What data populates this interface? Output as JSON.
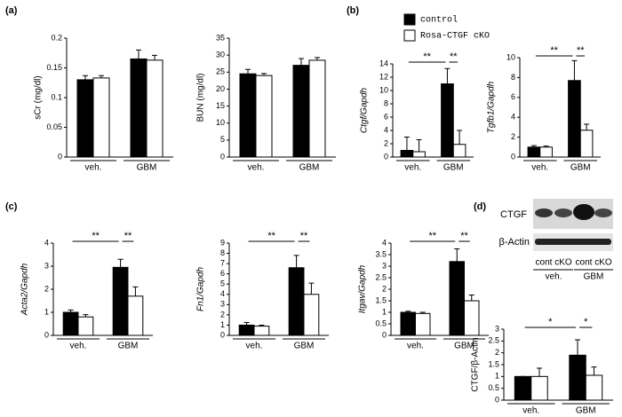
{
  "panels": [
    "(a)",
    "(b)",
    "(c)",
    "(d)"
  ],
  "blot": {
    "bands": [
      "CTGF",
      "β-Actin"
    ],
    "lanes": [
      "cont",
      "cKO",
      "cont",
      "cKO"
    ],
    "groups": [
      "veh.",
      "GBM"
    ]
  },
  "chart_data": [
    {
      "type": "bar",
      "ylabel": "sCr (mg/dl)",
      "categories": [
        "veh.",
        "GBM"
      ],
      "ylim": [
        0,
        0.2
      ],
      "yticks": [
        0,
        0.05,
        0.1,
        0.15,
        0.2
      ],
      "series": [
        {
          "name": "control",
          "color": "#000000",
          "values": [
            0.13,
            0.165
          ],
          "errors": [
            0.007,
            0.015
          ]
        },
        {
          "name": "Rosa-CTGF cKO",
          "color": "#ffffff",
          "values": [
            0.133,
            0.163
          ],
          "errors": [
            0.004,
            0.008
          ]
        }
      ]
    },
    {
      "type": "bar",
      "ylabel": "BUN (mg/dl)",
      "categories": [
        "veh.",
        "GBM"
      ],
      "ylim": [
        0,
        35
      ],
      "yticks": [
        0,
        5,
        10,
        15,
        20,
        25,
        30,
        35
      ],
      "series": [
        {
          "name": "control",
          "color": "#000000",
          "values": [
            24.5,
            27
          ],
          "errors": [
            1.3,
            2
          ]
        },
        {
          "name": "Rosa-CTGF cKO",
          "color": "#ffffff",
          "values": [
            24,
            28.5
          ],
          "errors": [
            0.6,
            0.8
          ]
        }
      ]
    },
    {
      "type": "bar",
      "ylabel": "Ctgf/Gapdh",
      "ylabel_italic": true,
      "categories": [
        "veh.",
        "GBM"
      ],
      "ylim": [
        0,
        14
      ],
      "yticks": [
        0,
        2,
        4,
        6,
        8,
        10,
        12,
        14
      ],
      "annotations": [
        "**",
        "**"
      ],
      "series": [
        {
          "name": "control",
          "color": "#000000",
          "values": [
            1,
            11
          ],
          "errors": [
            2,
            2.3
          ]
        },
        {
          "name": "Rosa-CTGF cKO",
          "color": "#ffffff",
          "values": [
            0.8,
            1.9
          ],
          "errors": [
            1.8,
            2.1
          ]
        }
      ]
    },
    {
      "type": "bar",
      "ylabel": "Tgfb1/Gapdh",
      "ylabel_italic": true,
      "categories": [
        "veh.",
        "GBM"
      ],
      "ylim": [
        0,
        10
      ],
      "yticks": [
        0,
        2,
        4,
        6,
        8,
        10
      ],
      "annotations": [
        "**",
        "**"
      ],
      "series": [
        {
          "name": "control",
          "color": "#000000",
          "values": [
            1,
            7.7
          ],
          "errors": [
            0.15,
            2
          ]
        },
        {
          "name": "Rosa-CTGF cKO",
          "color": "#ffffff",
          "values": [
            1,
            2.7
          ],
          "errors": [
            0.1,
            0.6
          ]
        }
      ]
    },
    {
      "type": "bar",
      "ylabel": "Acta2/Gapdh",
      "ylabel_italic": true,
      "categories": [
        "veh.",
        "GBM"
      ],
      "ylim": [
        0,
        4
      ],
      "yticks": [
        0,
        1,
        2,
        3,
        4
      ],
      "annotations": [
        "**",
        "**"
      ],
      "series": [
        {
          "name": "control",
          "color": "#000000",
          "values": [
            1,
            2.95
          ],
          "errors": [
            0.1,
            0.35
          ]
        },
        {
          "name": "Rosa-CTGF cKO",
          "color": "#ffffff",
          "values": [
            0.8,
            1.7
          ],
          "errors": [
            0.1,
            0.4
          ]
        }
      ]
    },
    {
      "type": "bar",
      "ylabel": "Fn1/Gapdh",
      "ylabel_italic": true,
      "categories": [
        "veh.",
        "GBM"
      ],
      "ylim": [
        0,
        9
      ],
      "yticks": [
        0,
        1,
        2,
        3,
        4,
        5,
        6,
        7,
        8,
        9
      ],
      "annotations": [
        "**",
        "**"
      ],
      "series": [
        {
          "name": "control",
          "color": "#000000",
          "values": [
            1,
            6.6
          ],
          "errors": [
            0.25,
            1.2
          ]
        },
        {
          "name": "Rosa-CTGF cKO",
          "color": "#ffffff",
          "values": [
            0.9,
            4
          ],
          "errors": [
            0.1,
            1.1
          ]
        }
      ]
    },
    {
      "type": "bar",
      "ylabel": "Itgav/Gapdh",
      "ylabel_italic": true,
      "categories": [
        "veh.",
        "GBM"
      ],
      "ylim": [
        0,
        4
      ],
      "yticks": [
        0,
        0.5,
        1,
        1.5,
        2,
        2.5,
        3,
        3.5,
        4
      ],
      "annotations": [
        "**",
        "**"
      ],
      "series": [
        {
          "name": "control",
          "color": "#000000",
          "values": [
            1,
            3.2
          ],
          "errors": [
            0.05,
            0.55
          ]
        },
        {
          "name": "Rosa-CTGF cKO",
          "color": "#ffffff",
          "values": [
            0.95,
            1.5
          ],
          "errors": [
            0.05,
            0.25
          ]
        }
      ]
    },
    {
      "type": "bar",
      "ylabel": "CTGF/β-Actin",
      "categories": [
        "veh.",
        "GBM"
      ],
      "ylim": [
        0,
        3
      ],
      "yticks": [
        0,
        0.5,
        1,
        1.5,
        2,
        2.5,
        3
      ],
      "annotations": [
        "*",
        "*"
      ],
      "series": [
        {
          "name": "control",
          "color": "#000000",
          "values": [
            1,
            1.9
          ],
          "errors": [
            0,
            0.65
          ]
        },
        {
          "name": "Rosa-CTGF cKO",
          "color": "#ffffff",
          "values": [
            1,
            1.05
          ],
          "errors": [
            0.35,
            0.35
          ]
        }
      ]
    }
  ]
}
